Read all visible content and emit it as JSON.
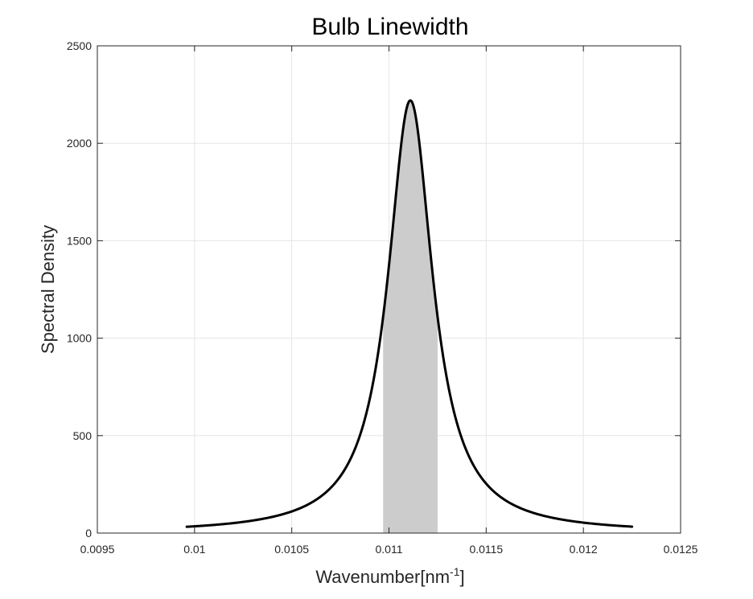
{
  "chart_data": {
    "type": "line",
    "title": "Bulb Linewidth",
    "xlabel": "Wavenumber[nm",
    "xlabel_superscript": "-1",
    "xlabel_suffix": "]",
    "ylabel": "Spectral Density",
    "xlim": [
      0.0095,
      0.0125
    ],
    "ylim": [
      0,
      2500
    ],
    "xticks": [
      0.0095,
      0.01,
      0.0105,
      0.011,
      0.0115,
      0.012,
      0.0125
    ],
    "xtick_labels": [
      "0.0095",
      "0.01",
      "0.0105",
      "0.011",
      "0.0115",
      "0.012",
      "0.0125"
    ],
    "yticks": [
      0,
      500,
      1000,
      1500,
      2000,
      2500
    ],
    "ytick_labels": [
      "0",
      "500",
      "1000",
      "1500",
      "2000",
      "2500"
    ],
    "grid": true,
    "series": [
      {
        "color": "#000000",
        "curve": "lorentzian",
        "center": 0.01111,
        "peak": 2220,
        "hwhm": 0.00014,
        "x_range": [
          0.00996,
          0.01225
        ]
      }
    ],
    "shaded_region": {
      "x_range": [
        0.01097,
        0.01125
      ],
      "color": "#cccccc"
    }
  }
}
